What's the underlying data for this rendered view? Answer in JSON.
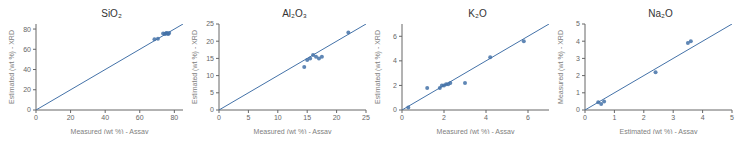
{
  "chart_data": [
    {
      "type": "scatter",
      "title": "SiO₂",
      "x_label": "Measured (wt %) - Assay",
      "y_label": "Estimated (wt %) - XRD",
      "xlim": [
        0,
        85
      ],
      "ylim": [
        0,
        85
      ],
      "xticks": [
        0,
        20,
        40,
        60,
        80
      ],
      "yticks": [
        0,
        20,
        40,
        60,
        80
      ],
      "grid": false,
      "series": [
        {
          "type": "line",
          "color": "#4472A8",
          "x": [
            0,
            85
          ],
          "y": [
            0,
            85
          ]
        },
        {
          "type": "scatter",
          "color": "#4472A8",
          "x": [
            68.5,
            70.5,
            73.5,
            74.5,
            75.0,
            75.5,
            76.0,
            76.5,
            77.0
          ],
          "y": [
            70.0,
            70.5,
            75.5,
            75.0,
            75.5,
            76.0,
            75.5,
            75.0,
            76.0
          ]
        }
      ]
    },
    {
      "type": "scatter",
      "title": "Al₂O₃",
      "x_label": "Measured (wt %) - Assay",
      "y_label": "Estimated (wt %) - XRD",
      "xlim": [
        0,
        25
      ],
      "ylim": [
        0,
        25
      ],
      "xticks": [
        0,
        5,
        10,
        15,
        20,
        25
      ],
      "yticks": [
        0,
        5,
        10,
        15,
        20,
        25
      ],
      "grid": false,
      "series": [
        {
          "type": "line",
          "color": "#4472A8",
          "x": [
            0,
            25
          ],
          "y": [
            0,
            25
          ]
        },
        {
          "type": "scatter",
          "color": "#4472A8",
          "x": [
            14.5,
            15.0,
            15.5,
            16.0,
            16.5,
            17.0,
            17.5,
            22.0
          ],
          "y": [
            12.5,
            14.5,
            15.0,
            16.0,
            15.5,
            15.0,
            15.5,
            22.5
          ]
        }
      ]
    },
    {
      "type": "scatter",
      "title": "K₂O",
      "x_label": "Measured (wt %) - Assay",
      "y_label": "Estimated (wt %) - XRD",
      "xlim": [
        0,
        7
      ],
      "ylim": [
        0,
        7
      ],
      "xticks": [
        0,
        2,
        4,
        6
      ],
      "yticks": [
        0,
        2,
        4,
        6
      ],
      "grid": false,
      "series": [
        {
          "type": "line",
          "color": "#4472A8",
          "x": [
            0,
            7
          ],
          "y": [
            0,
            7
          ]
        },
        {
          "type": "scatter",
          "color": "#4472A8",
          "x": [
            0.3,
            1.2,
            1.8,
            1.9,
            2.0,
            2.1,
            2.2,
            2.3,
            3.0,
            4.2,
            5.8
          ],
          "y": [
            0.2,
            1.8,
            1.8,
            2.0,
            2.0,
            2.1,
            2.1,
            2.2,
            2.2,
            4.3,
            5.6
          ]
        }
      ]
    },
    {
      "type": "scatter",
      "title": "Na₂O",
      "x_label": "Estimated (wt %) - Assay",
      "y_label": "Measured (wt %) - XRD",
      "xlim": [
        0,
        5
      ],
      "ylim": [
        0,
        5
      ],
      "xticks": [
        0,
        1,
        2,
        3,
        4,
        5
      ],
      "yticks": [
        0,
        1,
        2,
        3,
        4,
        5
      ],
      "grid": false,
      "series": [
        {
          "type": "line",
          "color": "#4472A8",
          "x": [
            0,
            5
          ],
          "y": [
            0,
            5
          ]
        },
        {
          "type": "scatter",
          "color": "#4472A8",
          "x": [
            0.45,
            0.55,
            0.65,
            2.4,
            3.5,
            3.6
          ],
          "y": [
            0.45,
            0.35,
            0.5,
            2.2,
            3.9,
            4.0
          ]
        }
      ]
    }
  ]
}
